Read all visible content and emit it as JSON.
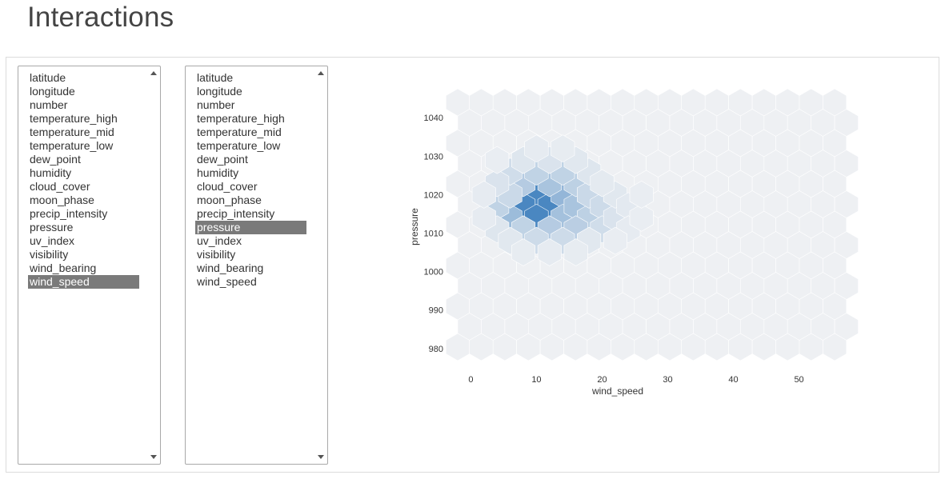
{
  "page": {
    "title": "Interactions"
  },
  "list_x": {
    "items": [
      "latitude",
      "longitude",
      "number",
      "temperature_high",
      "temperature_mid",
      "temperature_low",
      "dew_point",
      "humidity",
      "cloud_cover",
      "moon_phase",
      "precip_intensity",
      "pressure",
      "uv_index",
      "visibility",
      "wind_bearing",
      "wind_speed"
    ],
    "selected": "wind_speed"
  },
  "list_y": {
    "items": [
      "latitude",
      "longitude",
      "number",
      "temperature_high",
      "temperature_mid",
      "temperature_low",
      "dew_point",
      "humidity",
      "cloud_cover",
      "moon_phase",
      "precip_intensity",
      "pressure",
      "uv_index",
      "visibility",
      "wind_bearing",
      "wind_speed"
    ],
    "selected": "pressure"
  },
  "chart_data": {
    "type": "hexbin",
    "xlabel": "wind_speed",
    "ylabel": "pressure",
    "xlim": [
      -2,
      57
    ],
    "ylim": [
      976,
      1044
    ],
    "xticks": [
      "0",
      "10",
      "20",
      "30",
      "40",
      "50"
    ],
    "yticks": [
      "980",
      "990",
      "1000",
      "1010",
      "1020",
      "1030",
      "1040"
    ],
    "colors": {
      "min": "#eef0f3",
      "max": "#4a87c1"
    },
    "hexagons": [
      {
        "x": 10,
        "y": 1020,
        "v": 1.0
      },
      {
        "x": 12,
        "y": 1017,
        "v": 1.0
      },
      {
        "x": 8,
        "y": 1017,
        "v": 1.0
      },
      {
        "x": 10,
        "y": 1014,
        "v": 1.0
      },
      {
        "x": 14,
        "y": 1020,
        "v": 0.55
      },
      {
        "x": 6,
        "y": 1014,
        "v": 0.5
      },
      {
        "x": 14,
        "y": 1014,
        "v": 0.45
      },
      {
        "x": 12,
        "y": 1023,
        "v": 0.42
      },
      {
        "x": 16,
        "y": 1017,
        "v": 0.42
      },
      {
        "x": 8,
        "y": 1023,
        "v": 0.35
      },
      {
        "x": 12,
        "y": 1011,
        "v": 0.35
      },
      {
        "x": 16,
        "y": 1023,
        "v": 0.3
      },
      {
        "x": 4,
        "y": 1017,
        "v": 0.28
      },
      {
        "x": 18,
        "y": 1014,
        "v": 0.3
      },
      {
        "x": 16,
        "y": 1011,
        "v": 0.32
      },
      {
        "x": 14,
        "y": 1026,
        "v": 0.28
      },
      {
        "x": 10,
        "y": 1026,
        "v": 0.28
      },
      {
        "x": 8,
        "y": 1011,
        "v": 0.28
      },
      {
        "x": 6,
        "y": 1020,
        "v": 0.22
      },
      {
        "x": 18,
        "y": 1020,
        "v": 0.22
      },
      {
        "x": 20,
        "y": 1017,
        "v": 0.2
      },
      {
        "x": 20,
        "y": 1011,
        "v": 0.18
      },
      {
        "x": 10,
        "y": 1008,
        "v": 0.2
      },
      {
        "x": 14,
        "y": 1008,
        "v": 0.2
      },
      {
        "x": 6,
        "y": 1026,
        "v": 0.18
      },
      {
        "x": 4,
        "y": 1023,
        "v": 0.12
      },
      {
        "x": 4,
        "y": 1011,
        "v": 0.1
      },
      {
        "x": 22,
        "y": 1014,
        "v": 0.12
      },
      {
        "x": 22,
        "y": 1020,
        "v": 0.08
      },
      {
        "x": 18,
        "y": 1026,
        "v": 0.1
      },
      {
        "x": 12,
        "y": 1029,
        "v": 0.12
      },
      {
        "x": 8,
        "y": 1029,
        "v": 0.1
      },
      {
        "x": 16,
        "y": 1029,
        "v": 0.08
      },
      {
        "x": 24,
        "y": 1017,
        "v": 0.07
      },
      {
        "x": 18,
        "y": 1008,
        "v": 0.08
      },
      {
        "x": 6,
        "y": 1008,
        "v": 0.08
      },
      {
        "x": 2,
        "y": 1014,
        "v": 0.05
      },
      {
        "x": 2,
        "y": 1020,
        "v": 0.05
      },
      {
        "x": 20,
        "y": 1023,
        "v": 0.06
      },
      {
        "x": 24,
        "y": 1011,
        "v": 0.05
      },
      {
        "x": 12,
        "y": 1005,
        "v": 0.05
      },
      {
        "x": 16,
        "y": 1005,
        "v": 0.04
      },
      {
        "x": 8,
        "y": 1005,
        "v": 0.04
      },
      {
        "x": 10,
        "y": 1032,
        "v": 0.05
      },
      {
        "x": 14,
        "y": 1032,
        "v": 0.04
      },
      {
        "x": 26,
        "y": 1014,
        "v": 0.03
      },
      {
        "x": 22,
        "y": 1008,
        "v": 0.03
      },
      {
        "x": 4,
        "y": 1029,
        "v": 0.03
      },
      {
        "x": 26,
        "y": 1020,
        "v": 0.03
      }
    ]
  }
}
